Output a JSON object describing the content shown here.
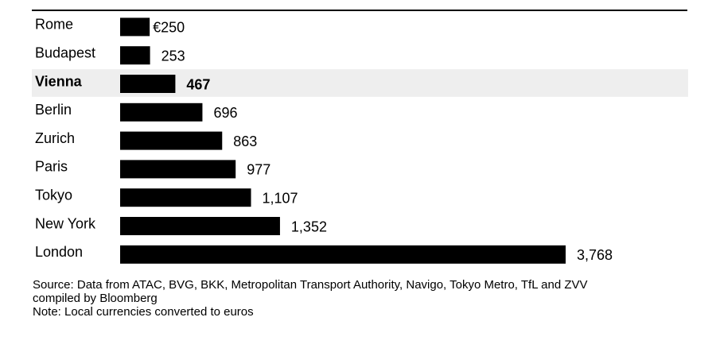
{
  "chart_data": {
    "type": "bar",
    "orientation": "horizontal",
    "title": "",
    "xlabel": "",
    "ylabel": "",
    "categories": [
      "Rome",
      "Budapest",
      "Vienna",
      "Berlin",
      "Zurich",
      "Paris",
      "Tokyo",
      "New York",
      "London"
    ],
    "values": [
      250,
      253,
      467,
      696,
      863,
      977,
      1107,
      1352,
      3768
    ],
    "value_labels": [
      "€250",
      "253",
      "467",
      "696",
      "863",
      "977",
      "1,107",
      "1,352",
      "3,768"
    ],
    "highlight_category": "Vienna",
    "xlim": [
      0,
      3768
    ],
    "grid": false,
    "legend": "none",
    "colors": {
      "bar": "#000000",
      "highlight_row": "#eeeeee",
      "top_rule": "#000000"
    }
  },
  "footnotes": {
    "source_line1": "Source: Data from ATAC, BVG, BKK, Metropolitan Transport Authority, Navigo, Tokyo Metro, TfL and ZVV",
    "source_line2": "compiled by Bloomberg",
    "note": "Note: Local currencies converted to euros"
  }
}
